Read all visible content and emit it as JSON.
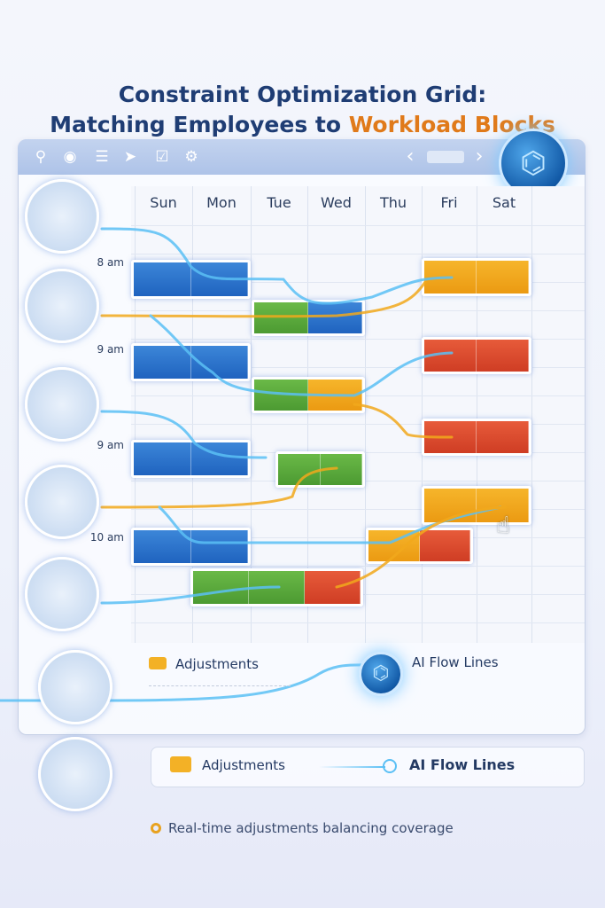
{
  "title": {
    "line1": "Constraint Optimization Grid:",
    "line2_prefix": "Matching Employees to ",
    "line2_highlight": "Workload Blocks"
  },
  "toolbar": {
    "icons": [
      "search-icon",
      "target-icon",
      "menu-icon",
      "send-icon",
      "checkbox-icon",
      "gear-icon"
    ],
    "prev": "‹",
    "next": "›"
  },
  "days": [
    "Sun",
    "Mon",
    "Tue",
    "Wed",
    "Thu",
    "Fri",
    "Sat"
  ],
  "times": [
    "8 am",
    "9 am",
    "9 am",
    "10 am"
  ],
  "colors": {
    "blue": "#2b74cf",
    "orange": "#f0a51d",
    "red": "#dc4a2e",
    "green": "#5aaa3d",
    "accent_title": "#e07a1a",
    "title": "#1f3d74"
  },
  "legend_inner": {
    "adjustments": "Adjustments",
    "flow": "AI Flow Lines"
  },
  "legend_outer": {
    "adjustments": "Adjustments",
    "flow": "AI Flow Lines"
  },
  "footnote": "Real-time adjustments balancing coverage"
}
